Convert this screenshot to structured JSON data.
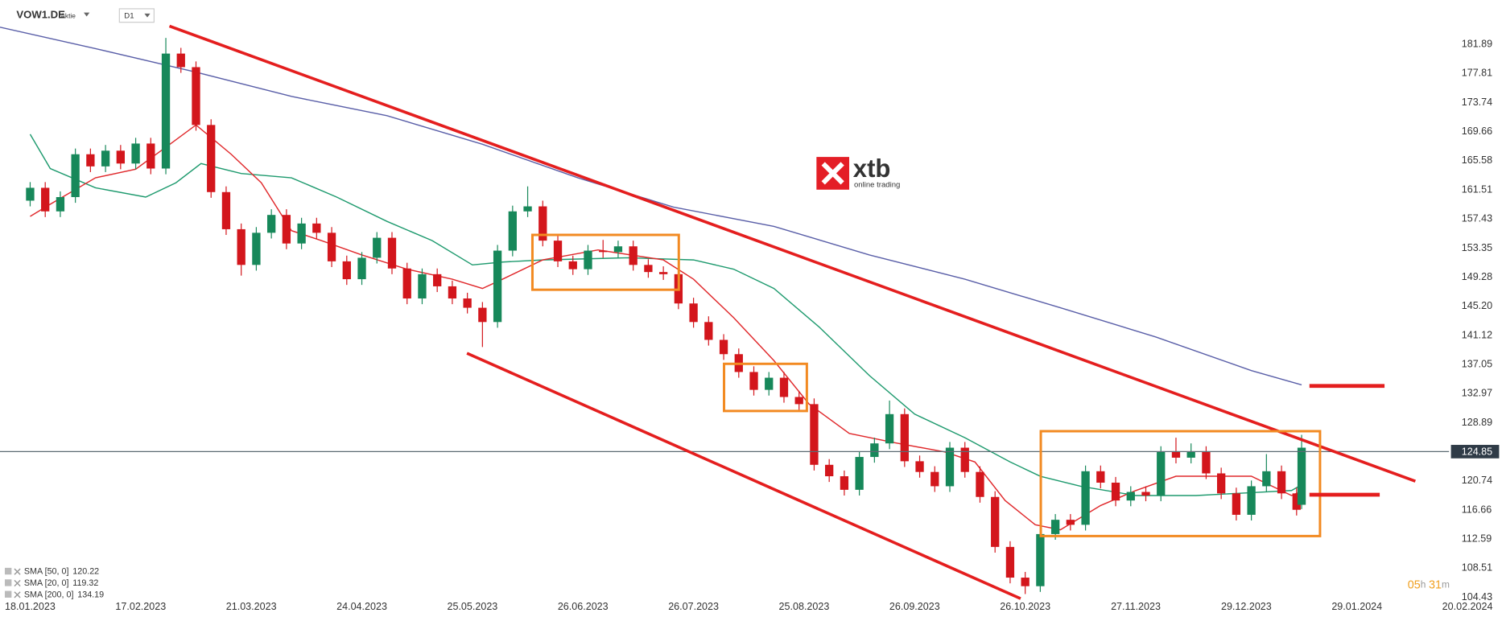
{
  "header": {
    "symbol": "VOW1.DE",
    "instrument": "Aktie",
    "timeframe": "D1"
  },
  "logo": {
    "brand": "xtb",
    "tagline": "online trading"
  },
  "countdown": {
    "hours": "05",
    "hours_unit": "h",
    "minutes": "31",
    "minutes_unit": "m"
  },
  "chart_data": {
    "type": "candlestick",
    "up_color": "#17885a",
    "down_color": "#d3161c",
    "x": [
      0,
      3,
      6,
      9,
      12,
      15,
      18,
      21,
      24,
      27,
      30,
      33,
      36,
      39,
      42,
      45,
      48,
      51,
      54,
      57,
      60,
      63,
      66,
      69,
      72,
      75,
      78,
      81,
      84,
      87,
      90,
      93,
      96,
      99,
      102,
      105,
      108,
      111,
      114,
      117,
      120,
      123,
      126,
      129,
      132,
      135,
      138,
      141,
      144,
      147,
      150,
      153,
      156,
      159,
      162,
      165,
      168,
      171,
      174,
      177,
      180,
      183,
      186,
      189,
      192,
      195,
      198,
      201,
      204,
      207,
      210,
      213,
      216,
      219,
      222,
      225,
      228,
      231,
      234,
      237,
      240,
      243,
      246,
      249,
      252,
      253
    ],
    "open": [
      160.0,
      161.8,
      158.5,
      160.5,
      166.5,
      164.8,
      167.0,
      165.2,
      168.0,
      164.5,
      180.6,
      178.7,
      170.6,
      161.2,
      156.0,
      151.0,
      155.5,
      158.0,
      154.0,
      156.8,
      155.5,
      151.5,
      149.0,
      152.0,
      154.8,
      150.5,
      146.3,
      149.7,
      148.0,
      146.3,
      145.0,
      143.0,
      153.0,
      158.5,
      159.2,
      154.4,
      151.5,
      150.4,
      153.0,
      152.8,
      153.6,
      151.0,
      150.0,
      149.7,
      145.6,
      143.0,
      140.5,
      138.5,
      136.0,
      133.5,
      135.2,
      132.5,
      131.5,
      123.0,
      121.4,
      119.5,
      124.1,
      126.0,
      130.1,
      123.5,
      122.0,
      120.0,
      125.4,
      122.0,
      118.5,
      111.5,
      107.2,
      106.0,
      113.3,
      115.3,
      114.6,
      122.1,
      120.5,
      118.0,
      119.2,
      118.7,
      124.8,
      124.0,
      124.8,
      121.8,
      119.0,
      116.0,
      120.0,
      122.1,
      119.0,
      117.4
    ],
    "high": [
      162.6,
      162.6,
      161.3,
      167.3,
      167.3,
      167.8,
      167.8,
      168.8,
      168.8,
      182.8,
      181.4,
      179.5,
      171.4,
      162.0,
      156.8,
      156.3,
      158.8,
      158.8,
      157.6,
      157.6,
      156.3,
      152.3,
      152.8,
      155.6,
      155.6,
      151.3,
      150.5,
      150.5,
      148.8,
      147.1,
      145.8,
      153.8,
      159.3,
      162.0,
      160.0,
      155.2,
      152.3,
      153.8,
      154.5,
      154.4,
      154.4,
      151.8,
      150.8,
      150.5,
      146.4,
      143.8,
      141.3,
      139.3,
      136.8,
      136.0,
      136.0,
      133.3,
      132.3,
      123.8,
      122.2,
      124.9,
      126.8,
      132.0,
      130.9,
      124.3,
      122.8,
      126.2,
      126.2,
      122.8,
      119.3,
      112.3,
      108.0,
      114.1,
      116.1,
      116.1,
      122.9,
      122.9,
      121.3,
      120.0,
      120.0,
      125.6,
      126.8,
      126.0,
      125.6,
      122.6,
      119.8,
      120.8,
      124.5,
      122.9,
      119.8,
      127.2
    ],
    "low": [
      159.2,
      157.7,
      157.7,
      159.7,
      164.0,
      164.0,
      164.4,
      164.4,
      163.7,
      163.7,
      177.9,
      169.8,
      160.4,
      155.2,
      149.5,
      150.2,
      154.7,
      153.2,
      153.2,
      154.7,
      150.7,
      148.2,
      148.2,
      151.2,
      149.7,
      145.5,
      145.5,
      147.2,
      145.5,
      144.2,
      139.5,
      142.2,
      152.2,
      157.7,
      153.6,
      150.7,
      149.6,
      149.6,
      152.0,
      152.0,
      150.2,
      149.2,
      148.9,
      144.8,
      142.2,
      139.7,
      137.7,
      135.2,
      132.7,
      132.7,
      131.7,
      130.7,
      122.2,
      120.6,
      118.7,
      118.7,
      123.3,
      125.2,
      122.7,
      121.2,
      119.2,
      119.2,
      121.2,
      117.7,
      110.7,
      106.4,
      104.9,
      105.2,
      112.5,
      113.8,
      113.8,
      119.7,
      117.2,
      117.2,
      117.9,
      117.9,
      123.2,
      123.2,
      121.0,
      118.2,
      115.2,
      115.2,
      119.2,
      118.2,
      115.9,
      116.8
    ],
    "close": [
      161.8,
      158.5,
      160.5,
      166.5,
      164.8,
      167.0,
      165.2,
      168.0,
      164.5,
      180.6,
      178.7,
      170.6,
      161.2,
      156.0,
      151.0,
      155.5,
      158.0,
      154.0,
      156.8,
      155.5,
      151.5,
      149.0,
      152.0,
      154.8,
      150.5,
      146.3,
      149.7,
      148.0,
      146.3,
      145.0,
      143.0,
      153.0,
      158.5,
      159.2,
      154.4,
      151.5,
      150.4,
      153.0,
      152.8,
      153.6,
      151.0,
      150.0,
      149.7,
      145.6,
      143.0,
      140.5,
      138.5,
      136.0,
      133.5,
      135.2,
      132.5,
      131.5,
      123.0,
      121.4,
      119.5,
      124.1,
      126.0,
      130.1,
      123.5,
      122.0,
      120.0,
      125.4,
      122.0,
      118.5,
      111.5,
      107.2,
      106.0,
      113.3,
      115.3,
      114.6,
      122.1,
      120.5,
      118.0,
      119.2,
      118.7,
      124.8,
      124.0,
      124.8,
      121.8,
      119.0,
      116.0,
      120.0,
      122.1,
      119.0,
      116.7,
      125.4
    ],
    "overlays": [
      {
        "name": "SMA [50, 0]",
        "last_value": 120.22,
        "color": "#1e9a6e",
        "x": [
          0,
          4,
          13,
          23,
          29,
          34,
          42,
          52,
          61,
          71,
          80,
          88,
          94,
          102,
          119,
          132,
          140,
          148,
          157,
          167,
          176,
          186,
          195,
          201,
          209,
          220,
          232,
          243,
          251,
          253
        ],
        "values": [
          169.3,
          164.5,
          161.8,
          160.5,
          162.5,
          165.2,
          163.8,
          163.2,
          160.5,
          157.1,
          154.4,
          151.0,
          151.4,
          151.7,
          152.0,
          151.7,
          150.4,
          147.7,
          142.3,
          135.5,
          130.1,
          126.8,
          123.4,
          121.4,
          120.0,
          118.7,
          118.7,
          119.1,
          119.4,
          120.2
        ]
      },
      {
        "name": "SMA [20, 0]",
        "last_value": 119.32,
        "color": "#e0282b",
        "x": [
          0,
          4,
          13,
          21,
          28,
          33,
          40,
          46,
          52,
          58,
          66,
          75,
          84,
          90,
          94,
          102,
          113,
          126,
          132,
          140,
          148,
          155,
          163,
          172,
          182,
          188,
          194,
          200,
          205,
          213,
          220,
          228,
          236,
          243,
          251,
          253
        ],
        "values": [
          157.8,
          159.5,
          163.2,
          164.4,
          168.0,
          170.6,
          166.5,
          162.5,
          155.8,
          154.4,
          152.4,
          150.4,
          149.0,
          147.7,
          149.0,
          151.7,
          153.1,
          151.7,
          149.0,
          143.6,
          137.6,
          131.5,
          127.4,
          126.1,
          124.8,
          123.4,
          118.0,
          114.6,
          113.9,
          117.3,
          119.4,
          121.4,
          121.4,
          121.4,
          118.7,
          119.3
        ]
      },
      {
        "name": "SMA [200, 0]",
        "last_value": 134.19,
        "color": "#5a5fa8",
        "x": [
          -6,
          13,
          33,
          52,
          71,
          90,
          109,
          128,
          148,
          167,
          186,
          205,
          224,
          243,
          253
        ],
        "values": [
          184.3,
          181.3,
          178.0,
          174.6,
          171.9,
          167.9,
          163.2,
          159.1,
          156.4,
          152.4,
          149.0,
          145.0,
          140.9,
          136.2,
          134.2
        ]
      }
    ],
    "last_price": 124.85,
    "xlim": [
      -6,
      290
    ],
    "ylim": [
      104.26,
      188.09
    ],
    "xticks": [
      {
        "value": 0,
        "label": "18.01.2023"
      },
      {
        "value": 22,
        "label": "17.02.2023"
      },
      {
        "value": 44,
        "label": "21.03.2023"
      },
      {
        "value": 66,
        "label": "24.04.2023"
      },
      {
        "value": 88,
        "label": "25.05.2023"
      },
      {
        "value": 110,
        "label": "26.06.2023"
      },
      {
        "value": 132,
        "label": "26.07.2023"
      },
      {
        "value": 154,
        "label": "25.08.2023"
      },
      {
        "value": 176,
        "label": "26.09.2023"
      },
      {
        "value": 198,
        "label": "26.10.2023"
      },
      {
        "value": 220,
        "label": "27.11.2023"
      },
      {
        "value": 242,
        "label": "29.12.2023"
      },
      {
        "value": 264,
        "label": "29.01.2024"
      },
      {
        "value": 286,
        "label": "20.02.2024"
      }
    ],
    "yticks": [
      181.89,
      177.81,
      173.74,
      169.66,
      165.58,
      161.51,
      157.43,
      153.35,
      149.28,
      {
        "value": 145.2,
        "label": "145.20"
      },
      141.12,
      137.05,
      132.97,
      128.89,
      120.74,
      116.66,
      112.59,
      108.51,
      104.43
    ],
    "grid": false
  }
}
